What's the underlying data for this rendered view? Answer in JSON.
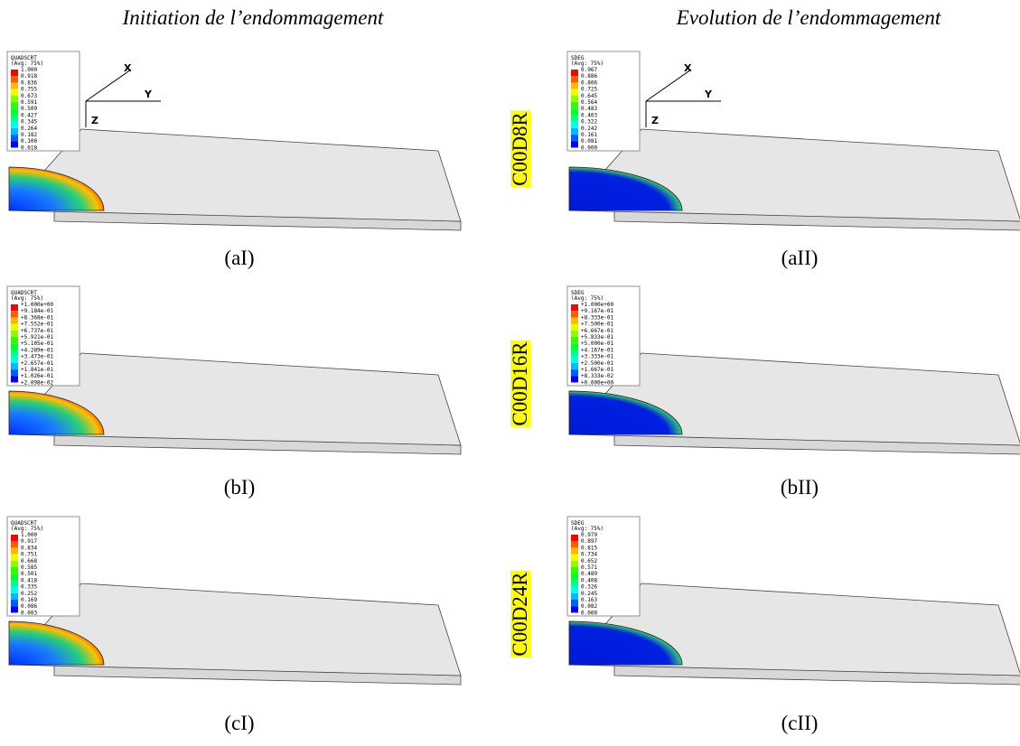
{
  "headers": [
    "Initiation de l’endommagement",
    "Evolution de l’endommagement"
  ],
  "row_labels": [
    "C00D8R",
    "C00D16R",
    "C00D24R"
  ],
  "panels": [
    {
      "caption": "(aI)",
      "axes": {
        "x": "X",
        "y": "Y",
        "z": "Z"
      },
      "legend": {
        "title": "QUADSCRT",
        "subtitle": "(Avg: 75%)",
        "values": [
          "1.000",
          "0.918",
          "0.836",
          "0.755",
          "0.673",
          "0.591",
          "0.509",
          "0.427",
          "0.345",
          "0.264",
          "0.182",
          "0.100",
          "0.018"
        ]
      }
    },
    {
      "caption": "(aII)",
      "axes": {
        "x": "X",
        "y": "Y",
        "z": "Z"
      },
      "legend": {
        "title": "SDEG",
        "subtitle": "(Avg: 75%)",
        "values": [
          "0.967",
          "0.886",
          "0.806",
          "0.725",
          "0.645",
          "0.564",
          "0.483",
          "0.403",
          "0.322",
          "0.242",
          "0.161",
          "0.081",
          "0.000"
        ]
      }
    },
    {
      "caption": "(bI)",
      "legend": {
        "title": "QUADSCRT",
        "subtitle": "(Avg: 75%)",
        "values": [
          "+1.000e+00",
          "+9.184e-01",
          "+8.368e-01",
          "+7.552e-01",
          "+6.737e-01",
          "+5.921e-01",
          "+5.105e-01",
          "+4.289e-01",
          "+3.473e-01",
          "+2.657e-01",
          "+1.841e-01",
          "+1.026e-01",
          "+2.098e-02"
        ]
      }
    },
    {
      "caption": "(bII)",
      "legend": {
        "title": "SDEG",
        "subtitle": "(Avg: 75%)",
        "values": [
          "+1.000e+00",
          "+9.167e-01",
          "+8.333e-01",
          "+7.500e-01",
          "+6.667e-01",
          "+5.833e-01",
          "+5.000e-01",
          "+4.167e-01",
          "+3.333e-01",
          "+2.500e-01",
          "+1.667e-01",
          "+8.333e-02",
          "+0.000e+00"
        ]
      }
    },
    {
      "caption": "(cI)",
      "legend": {
        "title": "QUADSCRT",
        "subtitle": "(Avg: 75%)",
        "values": [
          "1.000",
          "0.917",
          "0.834",
          "0.751",
          "0.668",
          "0.585",
          "0.501",
          "0.418",
          "0.335",
          "0.252",
          "0.169",
          "0.086",
          "0.003"
        ]
      }
    },
    {
      "caption": "(cII)",
      "legend": {
        "title": "SDEG",
        "subtitle": "(Avg: 75%)",
        "values": [
          "0.979",
          "0.897",
          "0.815",
          "0.734",
          "0.652",
          "0.571",
          "0.489",
          "0.408",
          "0.326",
          "0.245",
          "0.163",
          "0.082",
          "0.000"
        ]
      }
    }
  ]
}
